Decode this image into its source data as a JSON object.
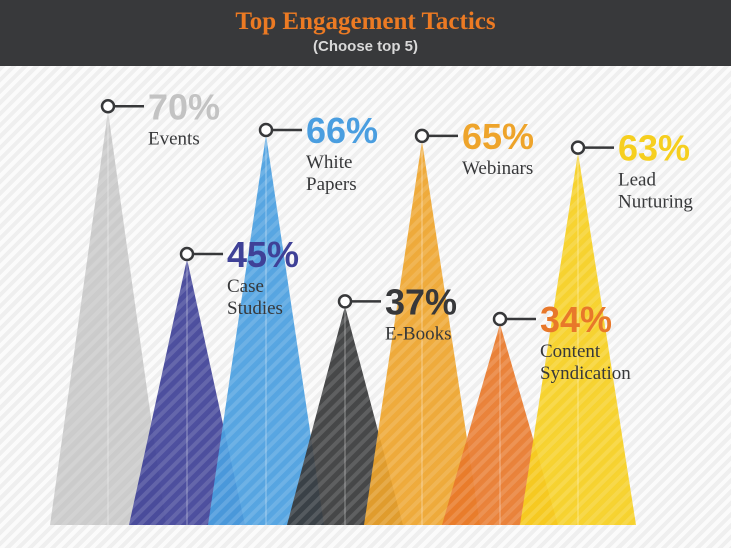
{
  "header": {
    "title": "Top Engagement Tactics",
    "subtitle": "(Choose top 5)"
  },
  "chart_data": {
    "type": "bar",
    "title": "Top Engagement Tactics",
    "subtitle": "(Choose top 5)",
    "ylim": [
      0,
      100
    ],
    "series": [
      {
        "value": 70,
        "value_label": "70%",
        "label_lines": [
          "Events"
        ],
        "color": "#c8c8c8",
        "label_color": "#c3c3c3"
      },
      {
        "value": 45,
        "value_label": "45%",
        "label_lines": [
          "Case",
          "Studies"
        ],
        "color": "#3f4197",
        "label_color": "#3f4197"
      },
      {
        "value": 66,
        "value_label": "66%",
        "label_lines": [
          "White",
          "Papers"
        ],
        "color": "#4a9ee0",
        "label_color": "#4a9ee0"
      },
      {
        "value": 37,
        "value_label": "37%",
        "label_lines": [
          "E-Books"
        ],
        "color": "#37383a",
        "label_color": "#37383a"
      },
      {
        "value": 65,
        "value_label": "65%",
        "label_lines": [
          "Webinars"
        ],
        "color": "#eea42b",
        "label_color": "#eea42b"
      },
      {
        "value": 34,
        "value_label": "34%",
        "label_lines": [
          "Content",
          "Syndication"
        ],
        "color": "#e8782a",
        "label_color": "#e8782a"
      },
      {
        "value": 63,
        "value_label": "63%",
        "label_lines": [
          "Lead",
          "Nurturing"
        ],
        "color": "#f6cf1f",
        "label_color": "#f6cf1f"
      }
    ]
  },
  "colors": {
    "header_bg": "#38393b",
    "title": "#ec7a23",
    "subtitle": "#d9d9d9",
    "name_label": "#37383a",
    "marker_line": "#37383a"
  }
}
